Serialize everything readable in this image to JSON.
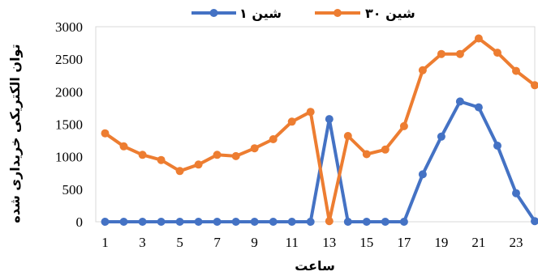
{
  "chart_data": {
    "type": "line",
    "title": "",
    "xlabel": "ساعت",
    "ylabel": "توان الکتریکی خریداری شده",
    "x": [
      1,
      2,
      3,
      4,
      5,
      6,
      7,
      8,
      9,
      10,
      11,
      12,
      13,
      14,
      15,
      16,
      17,
      18,
      19,
      20,
      21,
      22,
      23,
      24
    ],
    "x_tick_labels": [
      "1",
      "3",
      "5",
      "7",
      "9",
      "11",
      "13",
      "15",
      "17",
      "19",
      "21",
      "23"
    ],
    "x_tick_values": [
      1,
      3,
      5,
      7,
      9,
      11,
      13,
      15,
      17,
      19,
      21,
      23
    ],
    "xlim": [
      0.5,
      24
    ],
    "ylim": [
      0,
      3000
    ],
    "y_ticks": [
      0,
      500,
      1000,
      1500,
      2000,
      2500,
      3000
    ],
    "y_tick_labels": [
      "0",
      "500",
      "1000",
      "1500",
      "2000",
      "2500",
      "3000"
    ],
    "grid": false,
    "legend_position": "top",
    "series": [
      {
        "name": "شین ۱",
        "color": "#4472C4",
        "values": [
          0,
          0,
          0,
          0,
          0,
          0,
          0,
          0,
          0,
          0,
          0,
          0,
          1580,
          0,
          0,
          0,
          0,
          730,
          1310,
          1850,
          1760,
          1170,
          440,
          10
        ]
      },
      {
        "name": "شین ۳۰",
        "color": "#ED7D31",
        "values": [
          1360,
          1160,
          1030,
          950,
          780,
          880,
          1030,
          1010,
          1130,
          1270,
          1540,
          1690,
          10,
          1320,
          1040,
          1110,
          1470,
          2330,
          2580,
          2580,
          2820,
          2600,
          2320,
          2100
        ]
      }
    ]
  }
}
